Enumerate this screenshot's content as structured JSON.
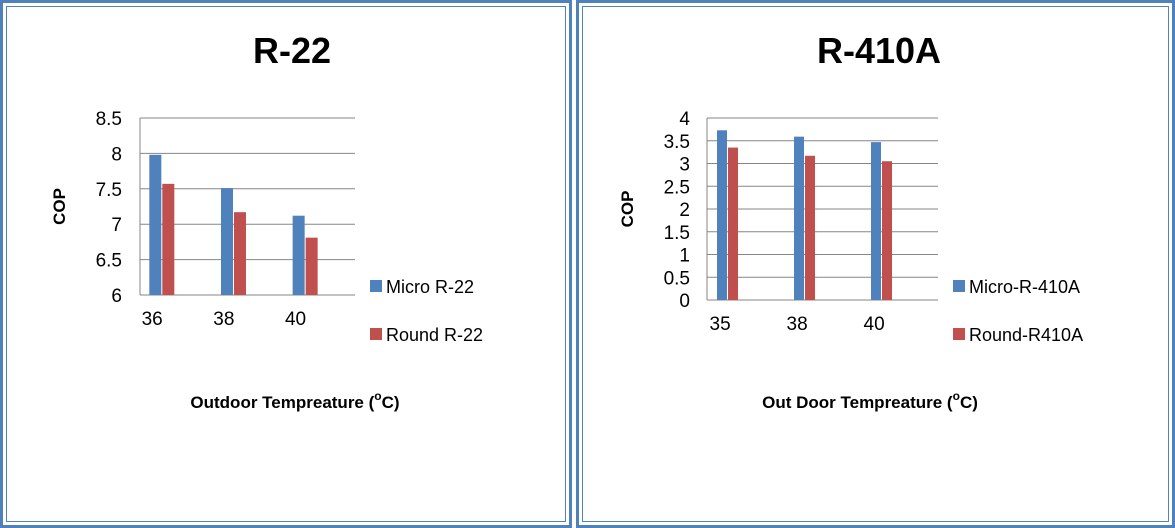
{
  "chart_data": [
    {
      "type": "bar",
      "title": "R-22",
      "xlabel": "Outdoor Tempreature (",
      "xlabel_sup": "o",
      "xlabel_end": "C)",
      "ylabel": "COP",
      "categories": [
        "36",
        "38",
        "40"
      ],
      "yticks": [
        "6",
        "6.5",
        "7",
        "7.5",
        "8",
        "8.5"
      ],
      "ylim": [
        6,
        8.5
      ],
      "grid": true,
      "legend_position": "right",
      "series": [
        {
          "name": "Micro R-22",
          "color": "#4f81bd",
          "values": [
            7.98,
            7.51,
            7.12
          ]
        },
        {
          "name": "Round R-22",
          "color": "#c0504d",
          "values": [
            7.57,
            7.17,
            6.81
          ]
        }
      ]
    },
    {
      "type": "bar",
      "title": "R-410A",
      "xlabel": "Out Door Tempreature (",
      "xlabel_sup": "o",
      "xlabel_end": "C)",
      "ylabel": "COP",
      "categories": [
        "35",
        "38",
        "40"
      ],
      "yticks": [
        "0",
        "0.5",
        "1",
        "1.5",
        "2",
        "2.5",
        "3",
        "3.5",
        "4"
      ],
      "ylim": [
        0,
        4
      ],
      "grid": true,
      "legend_position": "right",
      "series": [
        {
          "name": "Micro-R-410A",
          "color": "#4f81bd",
          "values": [
            3.73,
            3.59,
            3.47
          ]
        },
        {
          "name": "Round-R410A",
          "color": "#c0504d",
          "values": [
            3.35,
            3.17,
            3.05
          ]
        }
      ]
    }
  ]
}
